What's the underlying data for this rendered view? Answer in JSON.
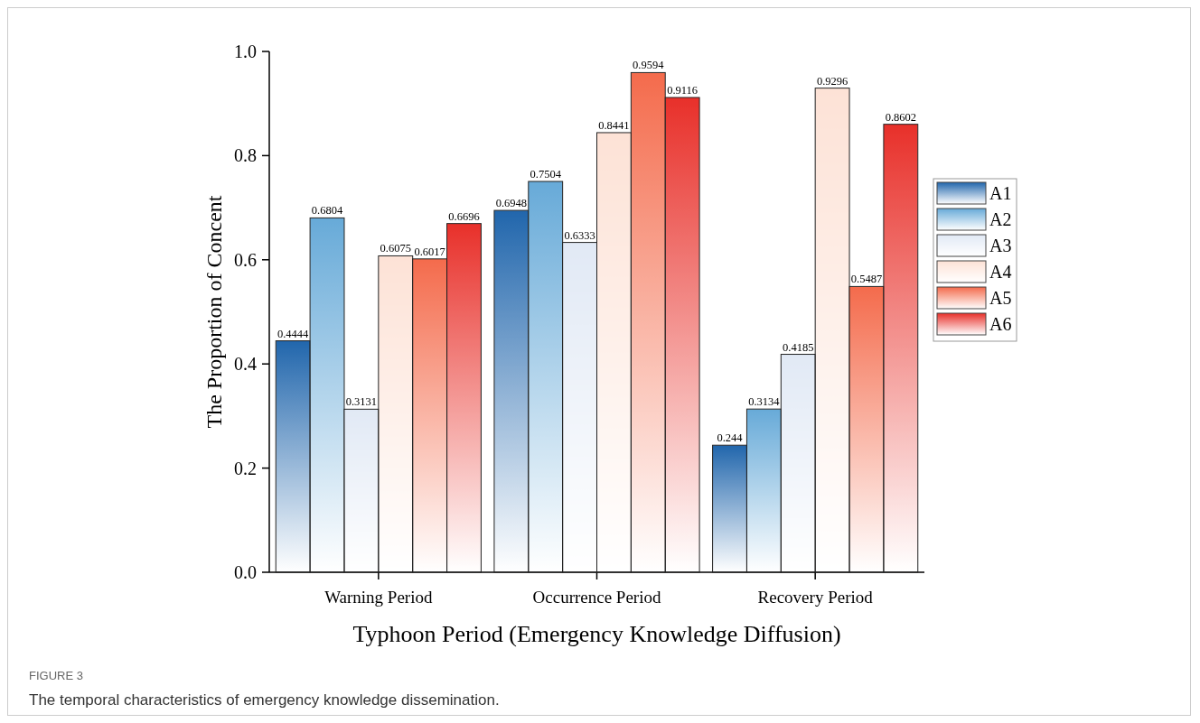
{
  "chart_data": {
    "type": "bar",
    "xlabel": "Typhoon Period (Emergency Knowledge Diffusion)",
    "ylabel": "The Proportion of Concent",
    "categories": [
      "Warning Period",
      "Occurrence Period",
      "Recovery Period"
    ],
    "series": [
      {
        "name": "A1",
        "color": "#2166ac",
        "values": [
          0.4444,
          0.6948,
          0.244
        ]
      },
      {
        "name": "A2",
        "color": "#67aad8",
        "values": [
          0.6804,
          0.7504,
          0.3134
        ]
      },
      {
        "name": "A3",
        "color": "#e1e9f5",
        "values": [
          0.3131,
          0.6333,
          0.4185
        ]
      },
      {
        "name": "A4",
        "color": "#fde2d6",
        "values": [
          0.6075,
          0.8441,
          0.9296
        ]
      },
      {
        "name": "A5",
        "color": "#f46b4c",
        "values": [
          0.6017,
          0.9594,
          0.5487
        ]
      },
      {
        "name": "A6",
        "color": "#e8302a",
        "values": [
          0.6696,
          0.9116,
          0.8602
        ]
      }
    ],
    "ylim": [
      0,
      1
    ],
    "yticks": [
      {
        "value": 0,
        "label": "0.0"
      },
      {
        "value": 0.2,
        "label": "0.2"
      },
      {
        "value": 0.4,
        "label": "0.4"
      },
      {
        "value": 0.6,
        "label": "0.6"
      },
      {
        "value": 0.8,
        "label": "0.8"
      },
      {
        "value": 1,
        "label": "1.0"
      }
    ],
    "data_labels": true,
    "legend": "right",
    "grid": false,
    "annotations": [
      "FIGURE 3",
      "The temporal characteristics of emergency knowledge dissemination."
    ]
  }
}
